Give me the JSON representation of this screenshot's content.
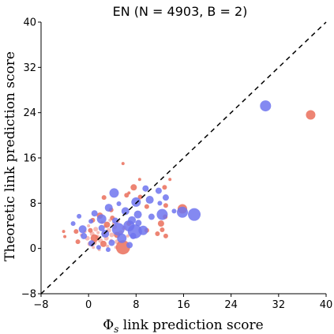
{
  "colors": {
    "blue": "#6e74ee",
    "red": "#ea6e5a",
    "light_red": "#f5b2aa",
    "diagonal": "#000000",
    "axis": "#000000"
  },
  "chart_data": {
    "type": "scatter",
    "title": "EN (N = 4903, B = 2)",
    "xlabel": "Φs link prediction score",
    "ylabel": "Theoretic link prediction score",
    "xlim": [
      -8,
      40
    ],
    "ylim": [
      -8,
      40
    ],
    "xticks": [
      "−8",
      "0",
      "8",
      "16",
      "24",
      "32",
      "40"
    ],
    "yticks": [
      "−8",
      "0",
      "8",
      "16",
      "24",
      "32",
      "40"
    ],
    "xtick_values": [
      -8,
      0,
      8,
      16,
      24,
      32,
      40
    ],
    "ytick_values": [
      -8,
      0,
      8,
      16,
      24,
      32,
      40
    ],
    "grid": false,
    "legend": "none",
    "reference_line": {
      "style": "dashed",
      "from": [
        -8,
        -8
      ],
      "to": [
        40,
        40
      ]
    },
    "series": [
      {
        "color_key": "blue",
        "points": [
          {
            "x": 29.8,
            "y": 25.2,
            "s": 7
          },
          {
            "x": 17.8,
            "y": 6.0,
            "s": 8
          },
          {
            "x": 15.8,
            "y": 6.4,
            "s": 7
          },
          {
            "x": 12.4,
            "y": 6.0,
            "s": 7
          },
          {
            "x": 10.3,
            "y": 8.6,
            "s": 5
          },
          {
            "x": 8.0,
            "y": 8.2,
            "s": 6
          },
          {
            "x": 8.3,
            "y": 6.0,
            "s": 5
          },
          {
            "x": 7.8,
            "y": 3.0,
            "s": 9
          },
          {
            "x": 9.2,
            "y": 3.2,
            "s": 6
          },
          {
            "x": 6.8,
            "y": 4.0,
            "s": 7
          },
          {
            "x": 5.0,
            "y": 3.4,
            "s": 8
          },
          {
            "x": 11.8,
            "y": 10.2,
            "s": 4
          },
          {
            "x": 4.3,
            "y": 9.8,
            "s": 6
          },
          {
            "x": 9.6,
            "y": 10.6,
            "s": 4
          },
          {
            "x": 13.0,
            "y": 9.0,
            "s": 4
          },
          {
            "x": 2.2,
            "y": 5.2,
            "s": 6
          },
          {
            "x": 1.0,
            "y": 6.2,
            "s": 4
          },
          {
            "x": 2.8,
            "y": 2.6,
            "s": 5
          },
          {
            "x": -1.0,
            "y": 3.4,
            "s": 5
          },
          {
            "x": -0.8,
            "y": 2.2,
            "s": 4
          },
          {
            "x": -2.6,
            "y": 4.4,
            "s": 3
          },
          {
            "x": 3.4,
            "y": 7.2,
            "s": 5
          },
          {
            "x": 6.2,
            "y": 6.6,
            "s": 5
          },
          {
            "x": 7.3,
            "y": 5.0,
            "s": 5
          },
          {
            "x": 5.6,
            "y": 1.8,
            "s": 6
          },
          {
            "x": 3.9,
            "y": 1.0,
            "s": 4
          },
          {
            "x": 6.9,
            "y": 0.6,
            "s": 4
          },
          {
            "x": 0.5,
            "y": 0.9,
            "s": 4
          },
          {
            "x": 1.7,
            "y": 0.2,
            "s": 3
          },
          {
            "x": -1.6,
            "y": 5.7,
            "s": 3
          },
          {
            "x": 8.4,
            "y": 4.5,
            "s": 4
          },
          {
            "x": 10.6,
            "y": 5.6,
            "s": 4
          },
          {
            "x": 14.4,
            "y": 6.6,
            "s": 3
          },
          {
            "x": 12.0,
            "y": 8.0,
            "s": 3
          },
          {
            "x": 4.5,
            "y": 4.9,
            "s": 4
          },
          {
            "x": 2.2,
            "y": 3.6,
            "s": 4
          },
          {
            "x": 0.4,
            "y": 4.8,
            "s": 3
          },
          {
            "x": 5.1,
            "y": 7.9,
            "s": 3
          },
          {
            "x": 3.3,
            "y": -0.2,
            "s": 3
          },
          {
            "x": 7.5,
            "y": 2.2,
            "s": 4
          }
        ]
      },
      {
        "color_key": "red",
        "points": [
          {
            "x": 37.4,
            "y": 23.6,
            "s": 6
          },
          {
            "x": 5.8,
            "y": 0.2,
            "s": 9
          },
          {
            "x": 15.8,
            "y": 7.0,
            "s": 6
          },
          {
            "x": 7.6,
            "y": 10.8,
            "s": 4
          },
          {
            "x": 5.8,
            "y": 15.0,
            "s": 2
          },
          {
            "x": 3.8,
            "y": 6.8,
            "s": 3
          },
          {
            "x": 9.8,
            "y": 7.4,
            "s": 3
          },
          {
            "x": 12.2,
            "y": 4.4,
            "s": 4
          },
          {
            "x": 12.9,
            "y": 5.6,
            "s": 3
          },
          {
            "x": 13.0,
            "y": 7.6,
            "s": 3
          },
          {
            "x": 12.8,
            "y": 10.8,
            "s": 3
          },
          {
            "x": 9.8,
            "y": 3.2,
            "s": 3
          },
          {
            "x": 12.4,
            "y": 3.3,
            "s": 3
          },
          {
            "x": 13.0,
            "y": 2.2,
            "s": 3
          },
          {
            "x": 11.6,
            "y": 2.6,
            "s": 3
          },
          {
            "x": 13.7,
            "y": 12.2,
            "s": 2
          },
          {
            "x": 8.6,
            "y": 12.2,
            "s": 2
          },
          {
            "x": 6.4,
            "y": 9.4,
            "s": 3
          },
          {
            "x": 2.6,
            "y": 9.0,
            "s": 3
          },
          {
            "x": 1.9,
            "y": 5.8,
            "s": 4
          },
          {
            "x": 0.7,
            "y": 5.0,
            "s": 3
          },
          {
            "x": 3.1,
            "y": 4.2,
            "s": 4
          },
          {
            "x": 1.0,
            "y": 1.8,
            "s": 5
          },
          {
            "x": 2.5,
            "y": 0.8,
            "s": 4
          },
          {
            "x": 4.8,
            "y": 2.4,
            "s": 4
          },
          {
            "x": 6.8,
            "y": 4.4,
            "s": 3
          },
          {
            "x": 4.0,
            "y": 5.4,
            "s": 3
          },
          {
            "x": 0.3,
            "y": 3.2,
            "s": 3
          },
          {
            "x": -1.8,
            "y": 1.2,
            "s": 3
          },
          {
            "x": -2.1,
            "y": 3.0,
            "s": 3
          },
          {
            "x": -4.2,
            "y": 3.0,
            "s": 2
          },
          {
            "x": -4.0,
            "y": 2.1,
            "s": 2
          },
          {
            "x": 6.8,
            "y": 9.8,
            "s": 2
          },
          {
            "x": 8.7,
            "y": 9.1,
            "s": 3
          }
        ]
      },
      {
        "color_key": "light_red",
        "points": [
          {
            "x": 0.2,
            "y": 0.8,
            "s": 3
          },
          {
            "x": 1.0,
            "y": 1.0,
            "s": 3
          },
          {
            "x": 1.5,
            "y": 2.0,
            "s": 3
          },
          {
            "x": 2.0,
            "y": 1.4,
            "s": 3
          },
          {
            "x": 2.6,
            "y": 2.6,
            "s": 3
          },
          {
            "x": 3.0,
            "y": 1.8,
            "s": 3
          },
          {
            "x": 3.4,
            "y": 3.2,
            "s": 3
          },
          {
            "x": 3.9,
            "y": 2.4,
            "s": 3
          },
          {
            "x": 4.4,
            "y": 3.8,
            "s": 3
          },
          {
            "x": 1.2,
            "y": 3.4,
            "s": 3
          },
          {
            "x": 0.6,
            "y": 2.6,
            "s": 3
          },
          {
            "x": -0.2,
            "y": 1.8,
            "s": 3
          },
          {
            "x": -0.6,
            "y": 3.0,
            "s": 2
          },
          {
            "x": 2.3,
            "y": 4.6,
            "s": 2
          },
          {
            "x": 3.6,
            "y": 5.0,
            "s": 2
          },
          {
            "x": 4.8,
            "y": 1.2,
            "s": 3
          },
          {
            "x": 5.4,
            "y": 2.8,
            "s": 3
          },
          {
            "x": 6.0,
            "y": 3.6,
            "s": 3
          },
          {
            "x": 6.6,
            "y": 2.2,
            "s": 2
          },
          {
            "x": 1.8,
            "y": -0.2,
            "s": 2
          },
          {
            "x": 0.8,
            "y": 0.2,
            "s": 2
          },
          {
            "x": 3.2,
            "y": 0.4,
            "s": 2
          },
          {
            "x": 2.8,
            "y": 3.9,
            "s": 2
          },
          {
            "x": 1.6,
            "y": 2.8,
            "s": 2
          },
          {
            "x": 4.2,
            "y": 4.4,
            "s": 2
          },
          {
            "x": 5.0,
            "y": 4.8,
            "s": 2
          },
          {
            "x": 0.0,
            "y": 4.0,
            "s": 2
          },
          {
            "x": -1.2,
            "y": 2.4,
            "s": 2
          },
          {
            "x": 4.6,
            "y": 0.2,
            "s": 2
          },
          {
            "x": 3.8,
            "y": 1.4,
            "s": 2
          }
        ]
      }
    ]
  }
}
